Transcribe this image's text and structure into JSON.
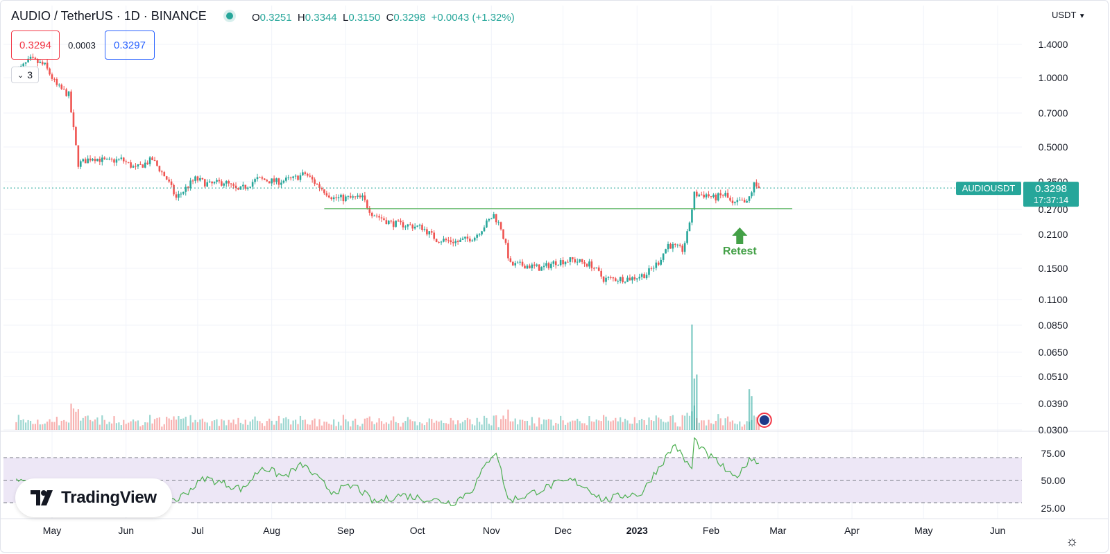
{
  "header": {
    "symbol_title": "AUDIO / TetherUS · 1D · BINANCE",
    "open_label": "O",
    "open": "0.3251",
    "high_label": "H",
    "high": "0.3344",
    "low_label": "L",
    "low": "0.3150",
    "close_label": "C",
    "close": "0.3298",
    "change": "+0.0043 (+1.32%)"
  },
  "trade": {
    "sell": "0.3294",
    "spread": "0.0003",
    "buy": "0.3297"
  },
  "indicators_collapse": {
    "count": "3"
  },
  "currency_label": "USDT",
  "price_label": {
    "symbol": "AUDIOUSDT",
    "price": "0.3298",
    "countdown": "17:37:14"
  },
  "annotation": {
    "text": "Retest"
  },
  "brand": {
    "name": "TradingView"
  },
  "colors": {
    "up": "#26a69a",
    "down": "#ef5350",
    "rsi": "#4caf50",
    "rsi_band": "#ede7f6",
    "annotation": "#43a047",
    "support_line": "#4caf50"
  },
  "chart_data": {
    "type": "candlestick",
    "scale": "log",
    "y_ticks": [
      "1.4000",
      "1.0000",
      "0.7000",
      "0.5000",
      "0.3500",
      "0.2700",
      "0.2100",
      "0.1500",
      "0.1100",
      "0.0850",
      "0.0650",
      "0.0510",
      "0.0390",
      "0.0300"
    ],
    "x_ticks": [
      "May",
      "Jun",
      "Jul",
      "Aug",
      "Sep",
      "Oct",
      "Nov",
      "Dec",
      "2023",
      "Feb",
      "Mar",
      "Apr",
      "May",
      "Jun"
    ],
    "support_level": 0.272,
    "price_anchors": [
      [
        "2022-04-16",
        1.06
      ],
      [
        "2022-04-22",
        1.2
      ],
      [
        "2022-04-28",
        1.13
      ],
      [
        "2022-05-03",
        0.92
      ],
      [
        "2022-05-08",
        0.84
      ],
      [
        "2022-05-12",
        0.42
      ],
      [
        "2022-05-18",
        0.45
      ],
      [
        "2022-05-24",
        0.43
      ],
      [
        "2022-05-30",
        0.44
      ],
      [
        "2022-06-05",
        0.4
      ],
      [
        "2022-06-12",
        0.44
      ],
      [
        "2022-06-18",
        0.36
      ],
      [
        "2022-06-22",
        0.3
      ],
      [
        "2022-06-30",
        0.36
      ],
      [
        "2022-07-06",
        0.34
      ],
      [
        "2022-07-12",
        0.35
      ],
      [
        "2022-07-18",
        0.32
      ],
      [
        "2022-07-26",
        0.36
      ],
      [
        "2022-08-03",
        0.35
      ],
      [
        "2022-08-10",
        0.36
      ],
      [
        "2022-08-15",
        0.38
      ],
      [
        "2022-08-20",
        0.34
      ],
      [
        "2022-08-27",
        0.3
      ],
      [
        "2022-09-03",
        0.3
      ],
      [
        "2022-09-08",
        0.3
      ],
      [
        "2022-09-12",
        0.26
      ],
      [
        "2022-09-20",
        0.235
      ],
      [
        "2022-09-27",
        0.23
      ],
      [
        "2022-10-03",
        0.225
      ],
      [
        "2022-10-09",
        0.2
      ],
      [
        "2022-10-18",
        0.195
      ],
      [
        "2022-10-25",
        0.205
      ],
      [
        "2022-11-02",
        0.255
      ],
      [
        "2022-11-05",
        0.225
      ],
      [
        "2022-11-09",
        0.155
      ],
      [
        "2022-11-15",
        0.155
      ],
      [
        "2022-11-22",
        0.15
      ],
      [
        "2022-11-28",
        0.16
      ],
      [
        "2022-12-05",
        0.163
      ],
      [
        "2022-12-13",
        0.155
      ],
      [
        "2022-12-18",
        0.135
      ],
      [
        "2022-12-23",
        0.135
      ],
      [
        "2022-12-30",
        0.136
      ],
      [
        "2023-01-05",
        0.142
      ],
      [
        "2023-01-10",
        0.16
      ],
      [
        "2023-01-14",
        0.19
      ],
      [
        "2023-01-20",
        0.18
      ],
      [
        "2023-01-22",
        0.21
      ],
      [
        "2023-01-25",
        0.31
      ],
      [
        "2023-01-30",
        0.31
      ],
      [
        "2023-02-02",
        0.3
      ],
      [
        "2023-02-07",
        0.31
      ],
      [
        "2023-02-10",
        0.28
      ],
      [
        "2023-02-13",
        0.29
      ],
      [
        "2023-02-16",
        0.285
      ],
      [
        "2023-02-19",
        0.34
      ],
      [
        "2023-02-21",
        0.3298
      ]
    ],
    "volume_spikes": [
      [
        "2023-01-24",
        0.0855
      ],
      [
        "2023-01-25",
        0.05
      ],
      [
        "2023-01-26",
        0.052
      ],
      [
        "2023-02-17",
        0.045
      ],
      [
        "2023-02-18",
        0.042
      ]
    ],
    "rsi": {
      "ticks": [
        "75.00",
        "50.00",
        "25.00"
      ],
      "upper": 70,
      "middle": 50,
      "lower": 30,
      "anchors": [
        [
          "2022-04-16",
          52
        ],
        [
          "2022-05-03",
          36
        ],
        [
          "2022-05-12",
          25
        ],
        [
          "2022-05-22",
          42
        ],
        [
          "2022-06-02",
          50
        ],
        [
          "2022-06-22",
          32
        ],
        [
          "2022-07-04",
          52
        ],
        [
          "2022-07-20",
          42
        ],
        [
          "2022-07-28",
          62
        ],
        [
          "2022-08-06",
          53
        ],
        [
          "2022-08-14",
          64
        ],
        [
          "2022-08-26",
          40
        ],
        [
          "2022-09-05",
          45
        ],
        [
          "2022-09-13",
          30
        ],
        [
          "2022-09-24",
          37
        ],
        [
          "2022-10-06",
          33
        ],
        [
          "2022-10-16",
          30
        ],
        [
          "2022-10-24",
          42
        ],
        [
          "2022-11-01",
          72
        ],
        [
          "2022-11-03",
          76
        ],
        [
          "2022-11-08",
          32
        ],
        [
          "2022-11-15",
          36
        ],
        [
          "2022-11-27",
          46
        ],
        [
          "2022-12-05",
          50
        ],
        [
          "2022-12-12",
          42
        ],
        [
          "2022-12-18",
          32
        ],
        [
          "2022-12-27",
          37
        ],
        [
          "2023-01-03",
          38
        ],
        [
          "2023-01-07",
          52
        ],
        [
          "2023-01-17",
          82
        ],
        [
          "2023-01-20",
          70
        ],
        [
          "2023-01-24",
          60
        ],
        [
          "2023-01-25",
          86
        ],
        [
          "2023-01-30",
          73
        ],
        [
          "2023-02-04",
          66
        ],
        [
          "2023-02-10",
          52
        ],
        [
          "2023-02-14",
          58
        ],
        [
          "2023-02-17",
          70
        ],
        [
          "2023-02-21",
          65
        ]
      ]
    }
  }
}
